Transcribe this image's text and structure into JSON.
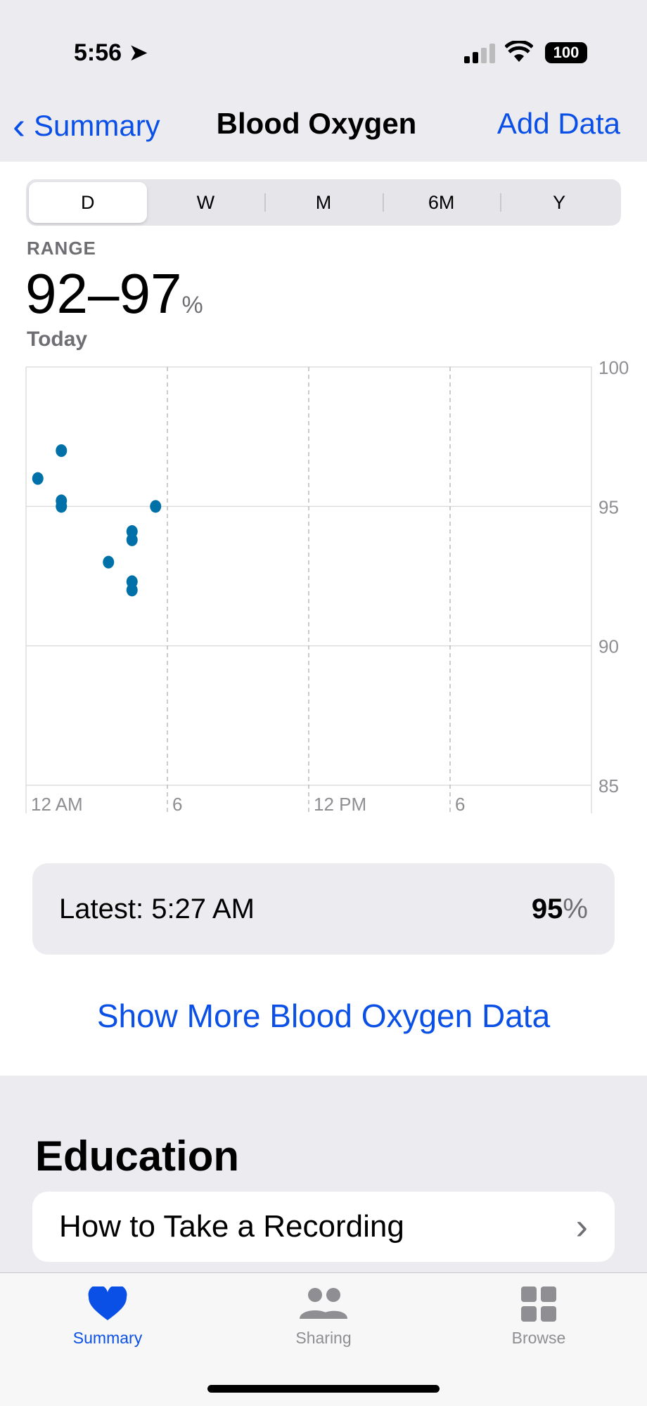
{
  "status": {
    "time": "5:56",
    "battery": "100"
  },
  "nav": {
    "back_label": "Summary",
    "title": "Blood Oxygen",
    "action_label": "Add Data"
  },
  "segments": [
    {
      "label": "D",
      "selected": true
    },
    {
      "label": "W"
    },
    {
      "label": "M"
    },
    {
      "label": "6M"
    },
    {
      "label": "Y"
    }
  ],
  "summary": {
    "range_label": "RANGE",
    "range_value": "92–97",
    "unit": "%",
    "period": "Today"
  },
  "chart_data": {
    "type": "scatter",
    "x_ticks": [
      "12 AM",
      "6",
      "12 PM",
      "6"
    ],
    "xlim_hours": [
      0,
      24
    ],
    "y_ticks": [
      "100",
      "95",
      "90",
      "85"
    ],
    "ylim": [
      85,
      100
    ],
    "color": "#0070a8",
    "points": [
      [
        0.5,
        96
      ],
      [
        1.5,
        97
      ],
      [
        1.5,
        95.2
      ],
      [
        1.5,
        95
      ],
      [
        3.5,
        93
      ],
      [
        4.5,
        94.1
      ],
      [
        4.5,
        93.8
      ],
      [
        4.5,
        92.3
      ],
      [
        4.5,
        92
      ],
      [
        5.5,
        95
      ]
    ]
  },
  "latest": {
    "label": "Latest: 5:27 AM",
    "value": "95",
    "unit": "%"
  },
  "show_more": "Show More Blood Oxygen Data",
  "education": {
    "heading": "Education",
    "items": [
      {
        "label": "How to Take a Recording"
      }
    ]
  },
  "tabs": [
    {
      "label": "Summary",
      "icon": "heart-icon",
      "active": true
    },
    {
      "label": "Sharing",
      "icon": "people-icon"
    },
    {
      "label": "Browse",
      "icon": "grid-icon"
    }
  ]
}
